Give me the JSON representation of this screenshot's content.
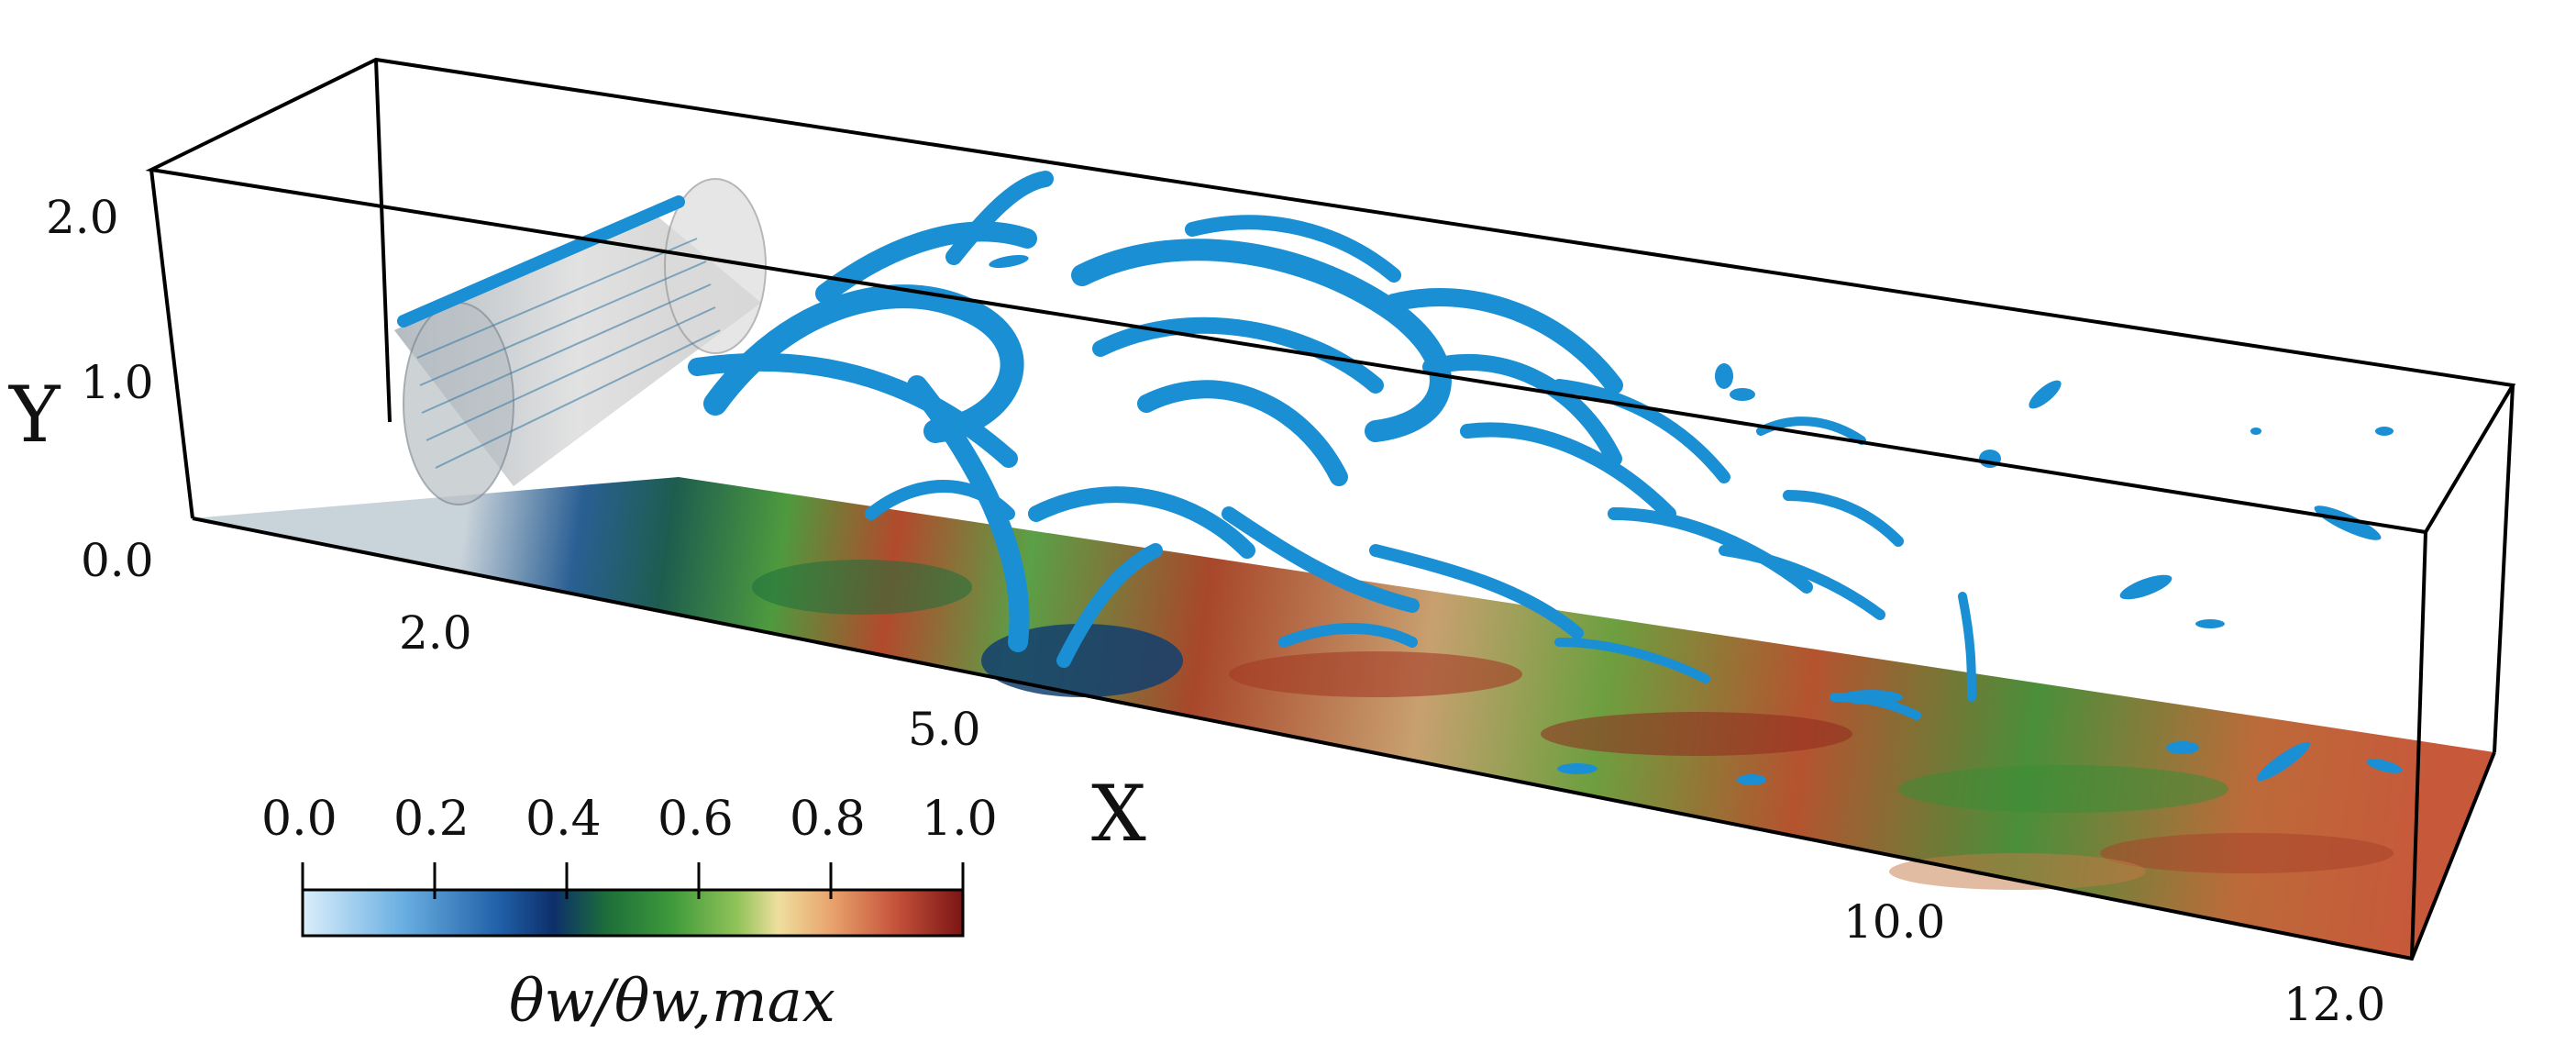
{
  "axes": {
    "x_label": "X",
    "y_label": "Y",
    "x_ticks": [
      "2.0",
      "5.0",
      "10.0",
      "12.0"
    ],
    "y_ticks": [
      "0.0",
      "1.0",
      "2.0"
    ]
  },
  "colorbar": {
    "title": "θw/θw,max",
    "ticks": [
      "0.0",
      "0.2",
      "0.4",
      "0.6",
      "0.8",
      "1.0"
    ],
    "colormap": [
      "#dbeefb",
      "#6ab0e2",
      "#1f5fa6",
      "#0d2f6b",
      "#1d6e3a",
      "#3f9a3b",
      "#93c35a",
      "#eedf9f",
      "#e9a36d",
      "#c5513a",
      "#7a1414"
    ]
  },
  "colors": {
    "vortex": "#1a8fd4",
    "cylinder": "#c7c7c7",
    "box_edge": "#000000"
  }
}
